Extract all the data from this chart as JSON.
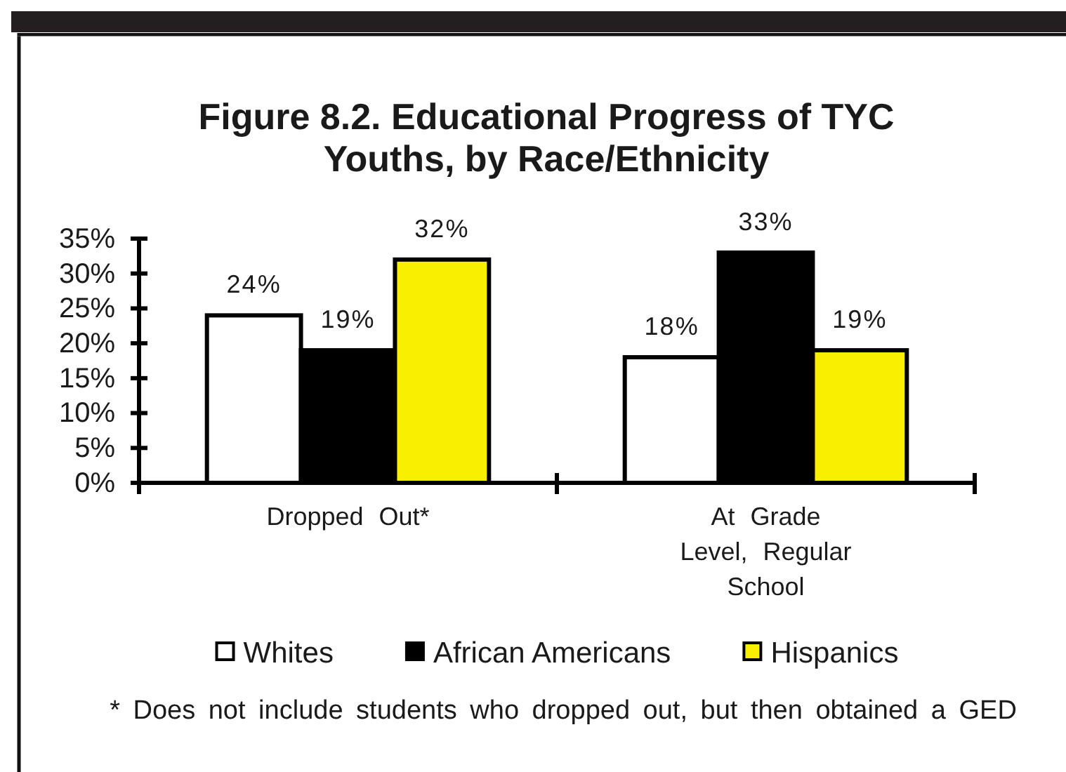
{
  "chart_data": {
    "type": "bar",
    "title": "Figure 8.2. Educational Progress of TYC Youths, by Race/Ethnicity",
    "categories": [
      "Dropped Out*",
      "At Grade Level, Regular School"
    ],
    "series": [
      {
        "name": "Whites",
        "color": "#ffffff",
        "values": [
          24,
          18
        ],
        "value_labels": [
          "24%",
          "18%"
        ]
      },
      {
        "name": "African Americans",
        "color": "#000000",
        "values": [
          19,
          33
        ],
        "value_labels": [
          "19%",
          "33%"
        ]
      },
      {
        "name": "Hispanics",
        "color": "#f8f000",
        "values": [
          32,
          19
        ],
        "value_labels": [
          "32%",
          "19%"
        ]
      }
    ],
    "ylim": [
      0,
      35
    ],
    "yticks": [
      {
        "value": 0,
        "label": "0%"
      },
      {
        "value": 5,
        "label": "5%"
      },
      {
        "value": 10,
        "label": "10%"
      },
      {
        "value": 15,
        "label": "15%"
      },
      {
        "value": 20,
        "label": "20%"
      },
      {
        "value": 25,
        "label": "25%"
      },
      {
        "value": 30,
        "label": "30%"
      },
      {
        "value": 35,
        "label": "35%"
      }
    ],
    "legend": "bottom",
    "annotations": [
      "* Does not include students who dropped out, but then obtained a GED"
    ]
  }
}
